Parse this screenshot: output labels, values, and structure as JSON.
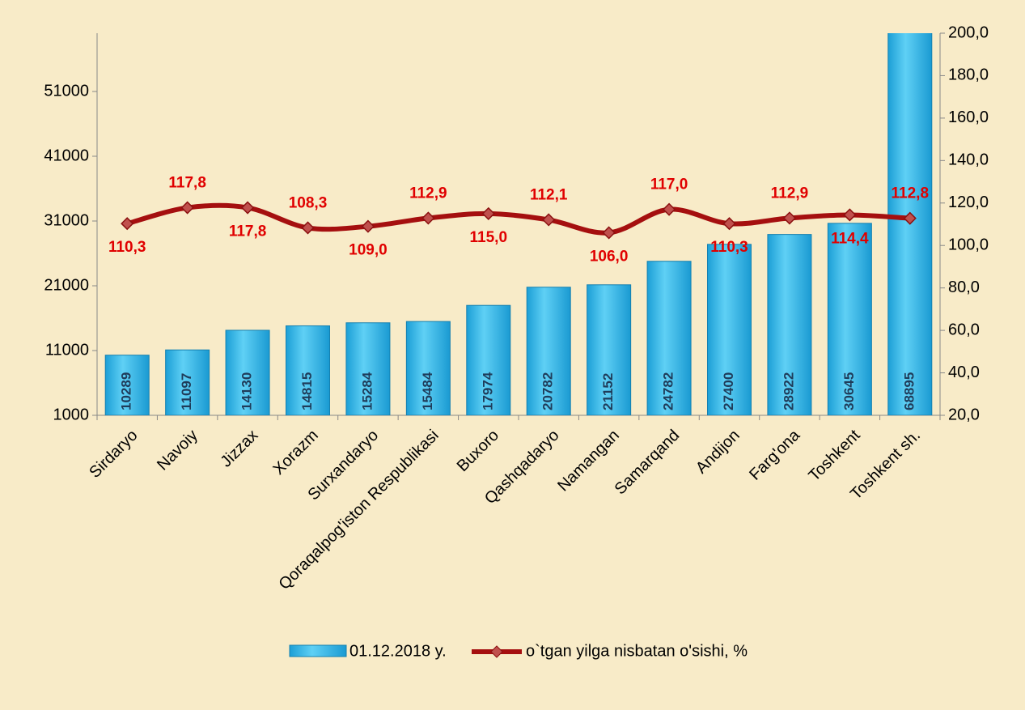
{
  "chart_data": {
    "type": "bar_line",
    "categories": [
      "Sirdaryo",
      "Navoiy",
      "Jizzax",
      "Xorazm",
      "Surxandaryo",
      "Qoraqalpog'iston Respublikasi",
      "Buxoro",
      "Qashqadaryo",
      "Namangan",
      "Samarqand",
      "Andijon",
      "Farg'ona",
      "Toshkent",
      "Toshkent sh."
    ],
    "series": [
      {
        "name": "01.12.2018 y.",
        "color": "#29b2e6",
        "axis": "y",
        "values": [
          10289,
          11097,
          14130,
          14815,
          15284,
          15484,
          17974,
          20782,
          21152,
          24782,
          27400,
          28922,
          30645,
          68895
        ]
      },
      {
        "name": "o`tgan yilga nisbatan o'sishi, %",
        "color": "#a50f0f",
        "axis": "y2",
        "values": [
          110.3,
          117.8,
          117.8,
          108.3,
          109.0,
          112.9,
          115.0,
          112.1,
          106.0,
          117.0,
          110.3,
          112.9,
          114.4,
          112.8
        ],
        "value_labels": [
          "110,3",
          "117,8",
          "117,8",
          "108,3",
          "109,0",
          "112,9",
          "115,0",
          "112,1",
          "106,0",
          "117,0",
          "110,3",
          "112,9",
          "114,4",
          "112,8"
        ]
      }
    ],
    "ylim": [
      1000,
      60000
    ],
    "yticks": [
      1000,
      11000,
      21000,
      31000,
      41000,
      51000
    ],
    "y2lim": [
      20,
      200
    ],
    "y2ticks": [
      {
        "value": 20,
        "label": "20,0"
      },
      {
        "value": 40,
        "label": "40,0"
      },
      {
        "value": 60,
        "label": "60,0"
      },
      {
        "value": 80,
        "label": "80,0"
      },
      {
        "value": 100,
        "label": "100,0"
      },
      {
        "value": 120,
        "label": "120,0"
      },
      {
        "value": 140,
        "label": "140,0"
      },
      {
        "value": 160,
        "label": "160,0"
      },
      {
        "value": 180,
        "label": "180,0"
      },
      {
        "value": 200,
        "label": "200,0"
      }
    ]
  }
}
